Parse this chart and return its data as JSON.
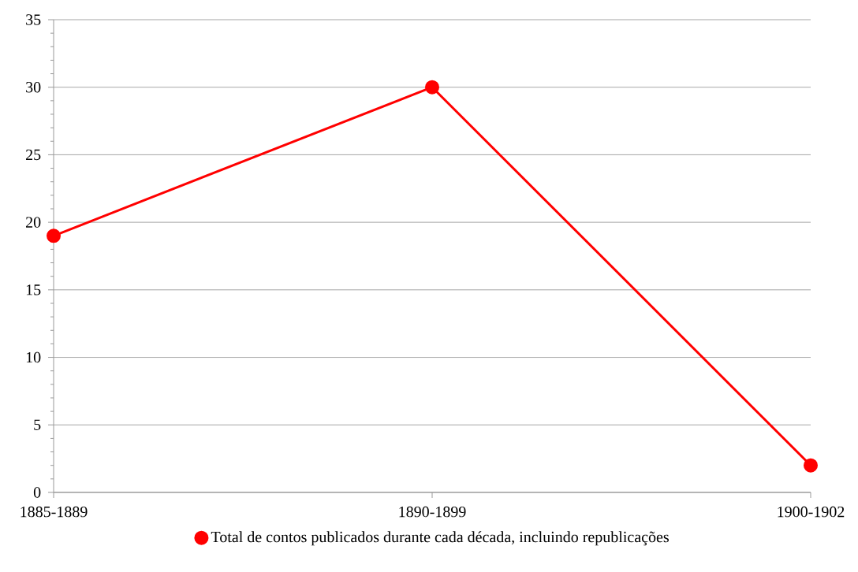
{
  "chart_data": {
    "type": "line",
    "categories": [
      "1885-1889",
      "1890-1899",
      "1900-1902"
    ],
    "series": [
      {
        "name": "Total de contos publicados durante cada década, incluindo republicações",
        "color": "#ff0000",
        "values": [
          19,
          30,
          2
        ]
      }
    ],
    "ylim": [
      0,
      35
    ],
    "yticks": [
      0,
      5,
      10,
      15,
      20,
      25,
      30,
      35
    ],
    "grid": "y",
    "legend": "bottom",
    "marker": "circle",
    "line_style": "solid"
  }
}
